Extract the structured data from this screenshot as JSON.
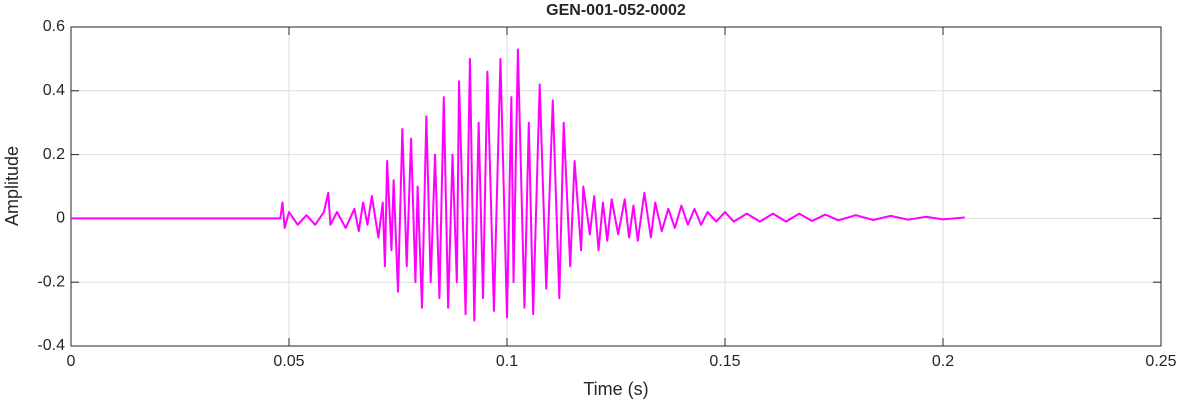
{
  "chart_data": {
    "type": "line",
    "title": "GEN-001-052-0002",
    "x_label": "Time (s)",
    "y_label": "Amplitude",
    "xlim": [
      0,
      0.25
    ],
    "xticks": [
      0,
      0.05,
      0.1,
      0.15,
      0.2,
      0.25
    ],
    "ylim": [
      -0.4,
      0.6
    ],
    "yticks": [
      -0.4,
      -0.2,
      0,
      0.2,
      0.4,
      0.6
    ],
    "grid": true,
    "series": [
      {
        "color": "#ff00ff",
        "x": [
          0,
          0.01,
          0.02,
          0.03,
          0.04,
          0.048,
          0.0485,
          0.049,
          0.05,
          0.052,
          0.054,
          0.056,
          0.058,
          0.059,
          0.0595,
          0.061,
          0.063,
          0.065,
          0.066,
          0.067,
          0.068,
          0.069,
          0.0705,
          0.0715,
          0.072,
          0.0725,
          0.0735,
          0.074,
          0.075,
          0.076,
          0.077,
          0.078,
          0.079,
          0.0795,
          0.0805,
          0.0815,
          0.0825,
          0.0835,
          0.0845,
          0.0855,
          0.0865,
          0.0875,
          0.0885,
          0.089,
          0.0905,
          0.0915,
          0.0925,
          0.0935,
          0.0945,
          0.0955,
          0.097,
          0.0985,
          0.1,
          0.101,
          0.1015,
          0.1025,
          0.104,
          0.105,
          0.106,
          0.1075,
          0.109,
          0.1105,
          0.112,
          0.113,
          0.1145,
          0.1155,
          0.117,
          0.1175,
          0.119,
          0.12,
          0.121,
          0.122,
          0.123,
          0.124,
          0.1255,
          0.127,
          0.128,
          0.129,
          0.13,
          0.1315,
          0.133,
          0.134,
          0.1355,
          0.137,
          0.1385,
          0.14,
          0.1415,
          0.143,
          0.1445,
          0.146,
          0.148,
          0.15,
          0.152,
          0.155,
          0.158,
          0.161,
          0.164,
          0.167,
          0.17,
          0.173,
          0.176,
          0.18,
          0.184,
          0.188,
          0.192,
          0.196,
          0.2,
          0.205
        ],
        "values": [
          0,
          0,
          0,
          0,
          0,
          0,
          0.05,
          -0.03,
          0.02,
          -0.02,
          0.01,
          -0.02,
          0.02,
          0.08,
          -0.02,
          0.02,
          -0.03,
          0.03,
          -0.04,
          0.05,
          -0.02,
          0.07,
          -0.06,
          0.05,
          -0.15,
          0.18,
          -0.1,
          0.12,
          -0.23,
          0.28,
          -0.15,
          0.25,
          -0.2,
          0.1,
          -0.28,
          0.32,
          -0.2,
          0.2,
          -0.25,
          0.38,
          -0.28,
          0.2,
          -0.2,
          0.43,
          -0.3,
          0.5,
          -0.32,
          0.3,
          -0.25,
          0.46,
          -0.29,
          0.5,
          -0.31,
          0.38,
          -0.2,
          0.53,
          -0.28,
          0.3,
          -0.3,
          0.42,
          -0.22,
          0.37,
          -0.25,
          0.3,
          -0.15,
          0.18,
          -0.1,
          0.1,
          -0.05,
          0.07,
          -0.1,
          0.05,
          -0.07,
          0.06,
          -0.05,
          0.06,
          -0.06,
          0.04,
          -0.07,
          0.08,
          -0.06,
          0.05,
          -0.04,
          0.03,
          -0.03,
          0.04,
          -0.02,
          0.03,
          -0.02,
          0.02,
          -0.01,
          0.02,
          -0.01,
          0.015,
          -0.01,
          0.015,
          -0.01,
          0.015,
          -0.008,
          0.012,
          -0.006,
          0.01,
          -0.005,
          0.008,
          -0.004,
          0.005,
          -0.003,
          0.003
        ]
      }
    ]
  }
}
